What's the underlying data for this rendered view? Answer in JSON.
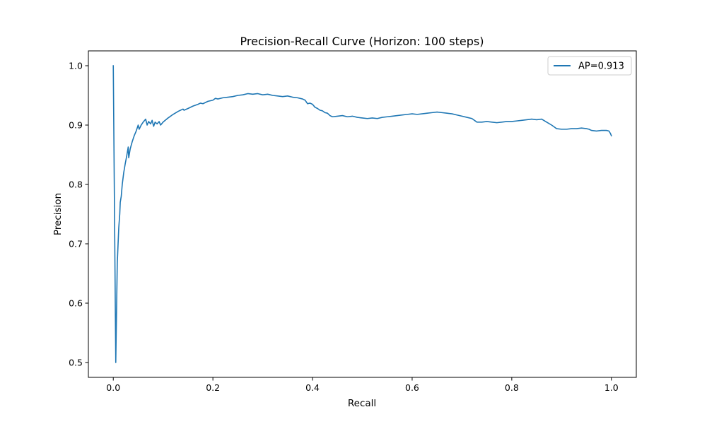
{
  "chart_data": {
    "type": "line",
    "title": "Precision-Recall Curve (Horizon: 100 steps)",
    "xlabel": "Recall",
    "ylabel": "Precision",
    "xlim": [
      -0.05,
      1.05
    ],
    "ylim": [
      0.475,
      1.025
    ],
    "xticks": [
      0.0,
      0.2,
      0.4,
      0.6,
      0.8,
      1.0
    ],
    "xtick_labels": [
      "0.0",
      "0.2",
      "0.4",
      "0.6",
      "0.8",
      "1.0"
    ],
    "yticks": [
      0.5,
      0.6,
      0.7,
      0.8,
      0.9,
      1.0
    ],
    "ytick_labels": [
      "0.5",
      "0.6",
      "0.7",
      "0.8",
      "0.9",
      "1.0"
    ],
    "grid": false,
    "legend": "top-right",
    "series": [
      {
        "name": "AP=0.913",
        "color": "#1f77b4",
        "x": [
          0.0,
          0.005,
          0.008,
          0.011,
          0.013,
          0.014,
          0.016,
          0.018,
          0.021,
          0.024,
          0.027,
          0.03,
          0.031,
          0.034,
          0.038,
          0.042,
          0.046,
          0.05,
          0.052,
          0.056,
          0.06,
          0.065,
          0.068,
          0.071,
          0.075,
          0.078,
          0.081,
          0.084,
          0.088,
          0.092,
          0.095,
          0.1,
          0.11,
          0.12,
          0.13,
          0.14,
          0.142,
          0.15,
          0.16,
          0.17,
          0.175,
          0.18,
          0.19,
          0.2,
          0.205,
          0.21,
          0.22,
          0.23,
          0.24,
          0.25,
          0.26,
          0.27,
          0.28,
          0.29,
          0.3,
          0.31,
          0.32,
          0.33,
          0.34,
          0.35,
          0.36,
          0.37,
          0.38,
          0.385,
          0.39,
          0.395,
          0.4,
          0.405,
          0.41,
          0.415,
          0.42,
          0.425,
          0.43,
          0.435,
          0.44,
          0.45,
          0.46,
          0.47,
          0.48,
          0.49,
          0.5,
          0.51,
          0.52,
          0.53,
          0.54,
          0.55,
          0.56,
          0.57,
          0.58,
          0.59,
          0.6,
          0.61,
          0.62,
          0.63,
          0.64,
          0.65,
          0.66,
          0.67,
          0.68,
          0.69,
          0.7,
          0.71,
          0.72,
          0.73,
          0.74,
          0.75,
          0.76,
          0.77,
          0.78,
          0.79,
          0.8,
          0.81,
          0.82,
          0.83,
          0.84,
          0.85,
          0.86,
          0.87,
          0.88,
          0.885,
          0.89,
          0.9,
          0.91,
          0.92,
          0.93,
          0.94,
          0.95,
          0.955,
          0.96,
          0.97,
          0.98,
          0.99,
          0.995,
          0.998,
          1.0
        ],
        "y": [
          1.0,
          0.5,
          0.667,
          0.727,
          0.75,
          0.77,
          0.78,
          0.8,
          0.82,
          0.835,
          0.848,
          0.863,
          0.845,
          0.86,
          0.872,
          0.882,
          0.89,
          0.9,
          0.893,
          0.9,
          0.905,
          0.91,
          0.9,
          0.906,
          0.902,
          0.908,
          0.898,
          0.905,
          0.902,
          0.906,
          0.9,
          0.905,
          0.912,
          0.918,
          0.923,
          0.927,
          0.925,
          0.928,
          0.932,
          0.935,
          0.937,
          0.936,
          0.94,
          0.942,
          0.945,
          0.944,
          0.946,
          0.947,
          0.948,
          0.95,
          0.951,
          0.953,
          0.952,
          0.953,
          0.951,
          0.952,
          0.95,
          0.949,
          0.948,
          0.949,
          0.947,
          0.946,
          0.944,
          0.942,
          0.936,
          0.937,
          0.935,
          0.93,
          0.928,
          0.925,
          0.924,
          0.921,
          0.92,
          0.916,
          0.914,
          0.915,
          0.916,
          0.914,
          0.915,
          0.913,
          0.912,
          0.911,
          0.912,
          0.911,
          0.913,
          0.914,
          0.915,
          0.916,
          0.917,
          0.918,
          0.919,
          0.918,
          0.919,
          0.92,
          0.921,
          0.922,
          0.921,
          0.92,
          0.919,
          0.917,
          0.915,
          0.913,
          0.911,
          0.905,
          0.905,
          0.906,
          0.905,
          0.904,
          0.905,
          0.906,
          0.906,
          0.907,
          0.908,
          0.909,
          0.91,
          0.909,
          0.91,
          0.905,
          0.9,
          0.897,
          0.894,
          0.893,
          0.893,
          0.894,
          0.894,
          0.895,
          0.894,
          0.893,
          0.891,
          0.89,
          0.891,
          0.891,
          0.89,
          0.886,
          0.882
        ]
      }
    ]
  }
}
